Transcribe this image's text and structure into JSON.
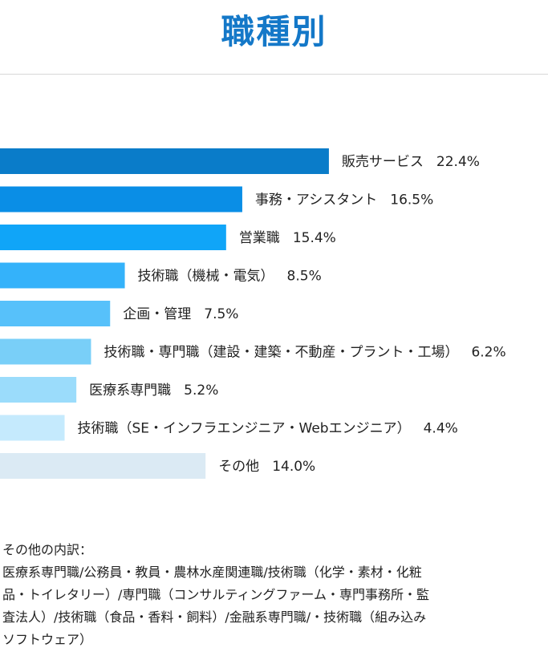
{
  "page": {
    "title": "職種別"
  },
  "colors": {
    "title": "#1478c8",
    "bars": [
      "#0a7cc9",
      "#0a8ee6",
      "#10a5f8",
      "#34b2fa",
      "#57c1fa",
      "#79cff8",
      "#9bdcfb",
      "#c5eafd",
      "#dbeaf4"
    ]
  },
  "chart_data": {
    "type": "bar",
    "orientation": "horizontal",
    "categories": [
      "販売サービス",
      "事務・アシスタント",
      "営業職",
      "技術職（機械・電気）",
      "企画・管理",
      "技術職・専門職（建設・建築・不動産・プラント・工場）",
      "医療系専門職",
      "技術職（SE・インフラエンジニア・Webエンジニア）",
      "その他"
    ],
    "values": [
      22.4,
      16.5,
      15.4,
      8.5,
      7.5,
      6.2,
      5.2,
      4.4,
      14.0
    ],
    "value_labels": [
      "22.4%",
      "16.5%",
      "15.4%",
      "8.5%",
      "7.5%",
      "6.2%",
      "5.2%",
      "4.4%",
      "14.0%"
    ],
    "unit": "%"
  },
  "notes": {
    "lines": [
      "その他の内訳：",
      "医療系専門職/公務員・教員・農林水産関連職/技術職（化学・素材・化粧",
      "品・トイレタリー）/専門職（コンサルティングファーム・専門事務所・監",
      "査法人）/技術職（食品・香料・飼料）/金融系専門職/・技術職（組み込み",
      "ソフトウェア）"
    ]
  }
}
